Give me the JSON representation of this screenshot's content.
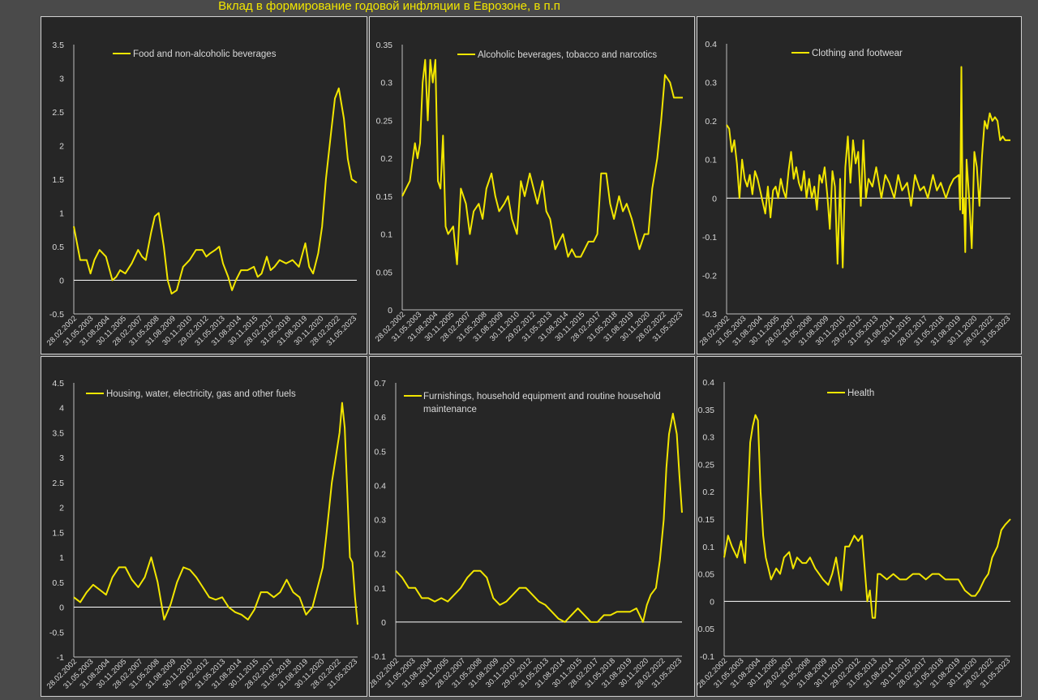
{
  "title": "Вклад в формирование годовой инфляции в Еврозоне, в п.п",
  "colors": {
    "line": "#f2e600",
    "axis_text": "#d9d9d9",
    "zero_line": "#ffffff",
    "panel_bg": "#262626",
    "page_bg": "#4a4a4a"
  },
  "x_tick_labels": [
    "28.02.2002",
    "31.05.2003",
    "31.08.2004",
    "30.11.2005",
    "28.02.2007",
    "31.05.2008",
    "31.08.2009",
    "30.11.2010",
    "29.02.2012",
    "31.05.2013",
    "31.08.2014",
    "30.11.2015",
    "28.02.2017",
    "31.05.2018",
    "31.08.2019",
    "30.11.2020",
    "28.02.2022",
    "31.05.2023"
  ],
  "chart_data": [
    {
      "type": "line",
      "legend": [
        "Food and non-alcoholic beverages"
      ],
      "ylim": [
        -0.5,
        3.5
      ],
      "yticks": [
        "-0.5",
        "0",
        "0.5",
        "1",
        "1.5",
        "2",
        "2.5",
        "3",
        "3.5"
      ],
      "x": [
        2002.0,
        2002.5,
        2003.0,
        2003.3,
        2003.6,
        2004.0,
        2004.5,
        2005.0,
        2005.3,
        2005.6,
        2006.0,
        2006.5,
        2007.0,
        2007.3,
        2007.6,
        2008.0,
        2008.3,
        2008.6,
        2009.0,
        2009.3,
        2009.6,
        2010.0,
        2010.5,
        2011.0,
        2011.5,
        2012.0,
        2012.3,
        2012.6,
        2013.0,
        2013.3,
        2013.6,
        2014.0,
        2014.3,
        2014.6,
        2015.0,
        2015.5,
        2016.0,
        2016.3,
        2016.6,
        2017.0,
        2017.3,
        2017.6,
        2018.0,
        2018.5,
        2019.0,
        2019.5,
        2020.0,
        2020.3,
        2020.6,
        2021.0,
        2021.3,
        2021.6,
        2022.0,
        2022.3,
        2022.6,
        2023.0,
        2023.3,
        2023.6,
        2024.0
      ],
      "y": [
        0.8,
        0.3,
        0.3,
        0.1,
        0.3,
        0.45,
        0.35,
        0.0,
        0.05,
        0.15,
        0.1,
        0.25,
        0.45,
        0.35,
        0.3,
        0.7,
        0.95,
        1.0,
        0.5,
        0.0,
        -0.2,
        -0.15,
        0.2,
        0.3,
        0.45,
        0.45,
        0.35,
        0.4,
        0.45,
        0.5,
        0.25,
        0.05,
        -0.15,
        0.0,
        0.15,
        0.15,
        0.2,
        0.05,
        0.1,
        0.35,
        0.15,
        0.2,
        0.3,
        0.25,
        0.3,
        0.2,
        0.55,
        0.2,
        0.1,
        0.4,
        0.8,
        1.5,
        2.2,
        2.7,
        2.85,
        2.4,
        1.8,
        1.5,
        1.45
      ]
    },
    {
      "type": "line",
      "legend": [
        "Alcoholic beverages, tobacco and narcotics"
      ],
      "ylim": [
        0,
        0.35
      ],
      "yticks": [
        "0",
        "0.05",
        "0.1",
        "0.15",
        "0.2",
        "0.25",
        "0.3",
        "0.35"
      ],
      "x": [
        2002.0,
        2002.3,
        2002.6,
        2003.0,
        2003.2,
        2003.4,
        2003.6,
        2003.8,
        2004.0,
        2004.2,
        2004.4,
        2004.6,
        2004.8,
        2005.0,
        2005.2,
        2005.4,
        2005.6,
        2006.0,
        2006.3,
        2006.6,
        2007.0,
        2007.3,
        2007.6,
        2008.0,
        2008.3,
        2008.6,
        2009.0,
        2009.3,
        2009.6,
        2010.0,
        2010.3,
        2010.6,
        2011.0,
        2011.3,
        2011.6,
        2012.0,
        2012.3,
        2012.6,
        2013.0,
        2013.3,
        2013.6,
        2014.0,
        2014.3,
        2014.6,
        2015.0,
        2015.3,
        2015.6,
        2016.0,
        2016.3,
        2016.6,
        2017.0,
        2017.3,
        2017.6,
        2018.0,
        2018.3,
        2018.6,
        2019.0,
        2019.3,
        2019.6,
        2020.0,
        2020.3,
        2020.6,
        2021.0,
        2021.3,
        2021.6,
        2022.0,
        2022.3,
        2022.6,
        2023.0,
        2023.3,
        2023.6,
        2024.0
      ],
      "y": [
        0.15,
        0.16,
        0.17,
        0.22,
        0.2,
        0.22,
        0.3,
        0.33,
        0.25,
        0.33,
        0.3,
        0.33,
        0.17,
        0.16,
        0.23,
        0.11,
        0.1,
        0.11,
        0.06,
        0.16,
        0.14,
        0.1,
        0.13,
        0.14,
        0.12,
        0.16,
        0.18,
        0.15,
        0.13,
        0.14,
        0.15,
        0.12,
        0.1,
        0.17,
        0.15,
        0.18,
        0.16,
        0.14,
        0.17,
        0.13,
        0.12,
        0.08,
        0.09,
        0.1,
        0.07,
        0.08,
        0.07,
        0.07,
        0.08,
        0.09,
        0.09,
        0.1,
        0.18,
        0.18,
        0.14,
        0.12,
        0.15,
        0.13,
        0.14,
        0.12,
        0.1,
        0.08,
        0.1,
        0.1,
        0.16,
        0.2,
        0.25,
        0.31,
        0.3,
        0.28,
        0.28,
        0.28
      ]
    },
    {
      "type": "line",
      "legend": [
        "Clothing and footwear"
      ],
      "ylim": [
        -0.3,
        0.4
      ],
      "yticks": [
        "-0.3",
        "-0.2",
        "-0.1",
        "0",
        "0.1",
        "0.2",
        "0.3",
        "0.4"
      ],
      "x": [
        2002.0,
        2002.2,
        2002.4,
        2002.6,
        2002.8,
        2003.0,
        2003.2,
        2003.4,
        2003.6,
        2003.8,
        2004.0,
        2004.2,
        2004.4,
        2004.6,
        2004.8,
        2005.0,
        2005.2,
        2005.4,
        2005.6,
        2005.8,
        2006.0,
        2006.2,
        2006.4,
        2006.6,
        2006.8,
        2007.0,
        2007.2,
        2007.4,
        2007.6,
        2007.8,
        2008.0,
        2008.2,
        2008.4,
        2008.6,
        2008.8,
        2009.0,
        2009.2,
        2009.4,
        2009.6,
        2009.8,
        2010.0,
        2010.2,
        2010.4,
        2010.6,
        2010.8,
        2011.0,
        2011.2,
        2011.4,
        2011.6,
        2011.8,
        2012.0,
        2012.2,
        2012.4,
        2012.6,
        2012.8,
        2013.0,
        2013.3,
        2013.6,
        2014.0,
        2014.3,
        2014.6,
        2015.0,
        2015.3,
        2015.6,
        2016.0,
        2016.3,
        2016.6,
        2017.0,
        2017.3,
        2017.6,
        2018.0,
        2018.3,
        2018.6,
        2019.0,
        2019.3,
        2019.6,
        2020.0,
        2020.1,
        2020.2,
        2020.3,
        2020.4,
        2020.5,
        2020.6,
        2020.8,
        2021.0,
        2021.2,
        2021.4,
        2021.6,
        2021.8,
        2022.0,
        2022.2,
        2022.4,
        2022.6,
        2022.8,
        2023.0,
        2023.2,
        2023.4,
        2023.6,
        2023.8,
        2024.0
      ],
      "y": [
        0.19,
        0.18,
        0.12,
        0.15,
        0.09,
        0.0,
        0.1,
        0.05,
        0.03,
        0.06,
        0.01,
        0.07,
        0.05,
        0.02,
        -0.01,
        -0.04,
        0.03,
        -0.05,
        0.02,
        0.03,
        0.0,
        0.05,
        0.02,
        0.0,
        0.07,
        0.12,
        0.05,
        0.08,
        0.04,
        0.02,
        0.07,
        0.0,
        0.05,
        0.0,
        0.03,
        -0.03,
        0.06,
        0.04,
        0.08,
        0.01,
        -0.08,
        0.07,
        0.03,
        -0.17,
        0.05,
        -0.18,
        0.08,
        0.16,
        0.04,
        0.15,
        0.09,
        0.12,
        -0.02,
        0.15,
        0.0,
        0.05,
        0.03,
        0.08,
        0.0,
        0.06,
        0.04,
        0.0,
        0.06,
        0.02,
        0.04,
        -0.02,
        0.06,
        0.02,
        0.03,
        0.0,
        0.06,
        0.02,
        0.04,
        0.0,
        0.03,
        0.05,
        0.06,
        -0.03,
        0.34,
        -0.04,
        0.0,
        -0.14,
        0.1,
        0.0,
        -0.13,
        0.12,
        0.08,
        -0.02,
        0.11,
        0.2,
        0.18,
        0.22,
        0.2,
        0.21,
        0.2,
        0.15,
        0.16,
        0.15,
        0.15,
        0.15
      ]
    },
    {
      "type": "line",
      "legend": [
        "Housing, water, electricity, gas and other fuels"
      ],
      "ylim": [
        -1,
        4.5
      ],
      "yticks": [
        "-1",
        "-0.5",
        "0",
        "0.5",
        "1",
        "1.5",
        "2",
        "2.5",
        "3",
        "3.5",
        "4",
        "4.5"
      ],
      "x": [
        2002.0,
        2002.5,
        2003.0,
        2003.5,
        2004.0,
        2004.5,
        2005.0,
        2005.5,
        2006.0,
        2006.5,
        2007.0,
        2007.5,
        2008.0,
        2008.5,
        2009.0,
        2009.5,
        2010.0,
        2010.5,
        2011.0,
        2011.5,
        2012.0,
        2012.5,
        2013.0,
        2013.5,
        2014.0,
        2014.5,
        2015.0,
        2015.5,
        2016.0,
        2016.5,
        2017.0,
        2017.5,
        2018.0,
        2018.5,
        2019.0,
        2019.5,
        2020.0,
        2020.5,
        2021.0,
        2021.3,
        2021.6,
        2022.0,
        2022.3,
        2022.6,
        2022.8,
        2023.0,
        2023.2,
        2023.4,
        2023.6,
        2023.8,
        2024.0
      ],
      "y": [
        0.2,
        0.1,
        0.3,
        0.45,
        0.35,
        0.25,
        0.6,
        0.8,
        0.8,
        0.55,
        0.4,
        0.6,
        1.0,
        0.5,
        -0.25,
        0.05,
        0.5,
        0.8,
        0.75,
        0.6,
        0.4,
        0.2,
        0.15,
        0.2,
        0.0,
        -0.1,
        -0.15,
        -0.25,
        -0.05,
        0.3,
        0.3,
        0.2,
        0.3,
        0.55,
        0.3,
        0.2,
        -0.15,
        0.0,
        0.5,
        0.8,
        1.5,
        2.5,
        3.0,
        3.5,
        4.1,
        3.6,
        2.3,
        1.0,
        0.9,
        0.2,
        -0.35
      ]
    },
    {
      "type": "line",
      "legend": [
        "Furnishings, household equipment and routine household maintenance"
      ],
      "ylim": [
        -0.1,
        0.7
      ],
      "yticks": [
        "-0.1",
        "0",
        "0.1",
        "0.2",
        "0.3",
        "0.4",
        "0.5",
        "0.6",
        "0.7"
      ],
      "x": [
        2002.0,
        2002.5,
        2003.0,
        2003.5,
        2004.0,
        2004.5,
        2005.0,
        2005.5,
        2006.0,
        2006.5,
        2007.0,
        2007.5,
        2008.0,
        2008.5,
        2009.0,
        2009.5,
        2010.0,
        2010.5,
        2011.0,
        2011.5,
        2012.0,
        2012.5,
        2013.0,
        2013.5,
        2014.0,
        2014.5,
        2015.0,
        2015.5,
        2016.0,
        2016.5,
        2017.0,
        2017.5,
        2018.0,
        2018.5,
        2019.0,
        2019.5,
        2020.0,
        2020.5,
        2021.0,
        2021.3,
        2021.6,
        2022.0,
        2022.3,
        2022.6,
        2022.8,
        2023.0,
        2023.3,
        2023.6,
        2023.8,
        2024.0
      ],
      "y": [
        0.15,
        0.13,
        0.1,
        0.1,
        0.07,
        0.07,
        0.06,
        0.07,
        0.06,
        0.08,
        0.1,
        0.13,
        0.15,
        0.15,
        0.13,
        0.07,
        0.05,
        0.06,
        0.08,
        0.1,
        0.1,
        0.08,
        0.06,
        0.05,
        0.03,
        0.01,
        0.0,
        0.02,
        0.04,
        0.02,
        0.0,
        0.0,
        0.02,
        0.02,
        0.03,
        0.03,
        0.03,
        0.04,
        0.0,
        0.05,
        0.08,
        0.1,
        0.18,
        0.3,
        0.45,
        0.55,
        0.61,
        0.55,
        0.43,
        0.32
      ]
    },
    {
      "type": "line",
      "legend": [
        "Health"
      ],
      "ylim": [
        -0.1,
        0.4
      ],
      "yticks": [
        "-0.1",
        "-0.05",
        "0",
        "0.05",
        "0.1",
        "0.15",
        "0.2",
        "0.25",
        "0.3",
        "0.35",
        "0.4"
      ],
      "x": [
        2002.0,
        2002.3,
        2002.6,
        2003.0,
        2003.3,
        2003.6,
        2004.0,
        2004.2,
        2004.4,
        2004.6,
        2004.8,
        2005.0,
        2005.2,
        2005.4,
        2005.6,
        2006.0,
        2006.3,
        2006.6,
        2007.0,
        2007.3,
        2007.6,
        2008.0,
        2008.3,
        2008.6,
        2009.0,
        2009.3,
        2009.6,
        2010.0,
        2010.3,
        2010.6,
        2011.0,
        2011.3,
        2011.6,
        2012.0,
        2012.3,
        2012.6,
        2013.0,
        2013.2,
        2013.4,
        2013.6,
        2013.8,
        2014.0,
        2014.5,
        2015.0,
        2015.5,
        2016.0,
        2016.5,
        2017.0,
        2017.5,
        2018.0,
        2018.5,
        2019.0,
        2019.5,
        2020.0,
        2020.5,
        2021.0,
        2021.3,
        2021.6,
        2022.0,
        2022.3,
        2022.6,
        2023.0,
        2023.3,
        2023.6,
        2024.0
      ],
      "y": [
        0.08,
        0.12,
        0.1,
        0.08,
        0.11,
        0.07,
        0.29,
        0.32,
        0.34,
        0.33,
        0.2,
        0.12,
        0.08,
        0.06,
        0.04,
        0.06,
        0.05,
        0.08,
        0.09,
        0.06,
        0.08,
        0.07,
        0.07,
        0.08,
        0.06,
        0.05,
        0.04,
        0.03,
        0.05,
        0.08,
        0.02,
        0.1,
        0.1,
        0.12,
        0.11,
        0.12,
        0.0,
        0.02,
        -0.03,
        -0.03,
        0.05,
        0.05,
        0.04,
        0.05,
        0.04,
        0.04,
        0.05,
        0.05,
        0.04,
        0.05,
        0.05,
        0.04,
        0.04,
        0.04,
        0.02,
        0.01,
        0.01,
        0.02,
        0.04,
        0.05,
        0.08,
        0.1,
        0.13,
        0.14,
        0.15
      ]
    }
  ]
}
